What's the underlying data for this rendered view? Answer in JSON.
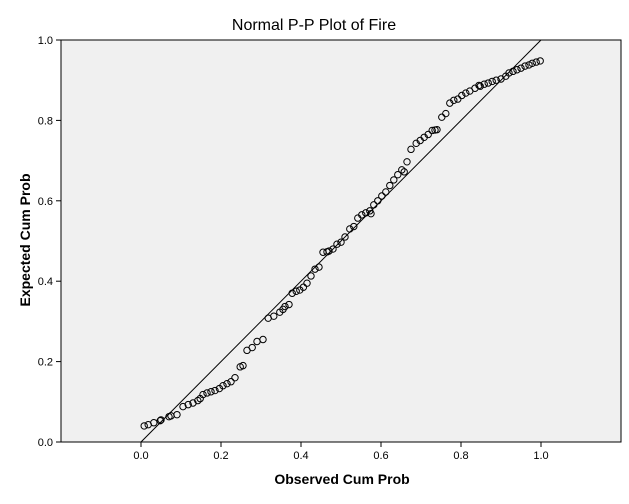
{
  "chart_data": {
    "type": "scatter",
    "title": "Normal P-P Plot of Fire",
    "xlabel": "Observed Cum Prob",
    "ylabel": "Expected Cum Prob",
    "xlim": [
      -0.2,
      1.2
    ],
    "ylim": [
      0.0,
      1.0
    ],
    "xticks": [
      "0.0",
      "0.2",
      "0.4",
      "0.6",
      "0.8",
      "1.0"
    ],
    "yticks": [
      "0.0",
      "0.2",
      "0.4",
      "0.6",
      "0.8",
      "1.0"
    ],
    "grid": false,
    "colors": {
      "plot_bg": "#f0f0f0",
      "marker_edge": "#000000",
      "line": "#000000"
    },
    "reference_line": {
      "x": [
        0.0,
        1.0
      ],
      "y": [
        0.0,
        1.0
      ]
    },
    "points": [
      [
        0.008,
        0.04
      ],
      [
        0.018,
        0.043
      ],
      [
        0.032,
        0.048
      ],
      [
        0.05,
        0.055
      ],
      [
        0.07,
        0.063
      ],
      [
        0.09,
        0.068
      ],
      [
        0.105,
        0.088
      ],
      [
        0.118,
        0.093
      ],
      [
        0.13,
        0.097
      ],
      [
        0.142,
        0.103
      ],
      [
        0.155,
        0.118
      ],
      [
        0.165,
        0.122
      ],
      [
        0.175,
        0.125
      ],
      [
        0.185,
        0.128
      ],
      [
        0.196,
        0.133
      ],
      [
        0.205,
        0.14
      ],
      [
        0.215,
        0.145
      ],
      [
        0.225,
        0.15
      ],
      [
        0.235,
        0.16
      ],
      [
        0.248,
        0.187
      ],
      [
        0.265,
        0.228
      ],
      [
        0.278,
        0.235
      ],
      [
        0.29,
        0.25
      ],
      [
        0.305,
        0.255
      ],
      [
        0.318,
        0.308
      ],
      [
        0.332,
        0.313
      ],
      [
        0.347,
        0.323
      ],
      [
        0.36,
        0.337
      ],
      [
        0.37,
        0.342
      ],
      [
        0.378,
        0.37
      ],
      [
        0.388,
        0.375
      ],
      [
        0.397,
        0.378
      ],
      [
        0.406,
        0.385
      ],
      [
        0.415,
        0.395
      ],
      [
        0.425,
        0.413
      ],
      [
        0.435,
        0.43
      ],
      [
        0.445,
        0.435
      ],
      [
        0.455,
        0.472
      ],
      [
        0.47,
        0.475
      ],
      [
        0.48,
        0.48
      ],
      [
        0.49,
        0.492
      ],
      [
        0.5,
        0.497
      ],
      [
        0.51,
        0.51
      ],
      [
        0.522,
        0.53
      ],
      [
        0.532,
        0.536
      ],
      [
        0.542,
        0.557
      ],
      [
        0.552,
        0.565
      ],
      [
        0.562,
        0.57
      ],
      [
        0.572,
        0.575
      ],
      [
        0.582,
        0.59
      ],
      [
        0.592,
        0.6
      ],
      [
        0.602,
        0.612
      ],
      [
        0.612,
        0.622
      ],
      [
        0.622,
        0.638
      ],
      [
        0.632,
        0.652
      ],
      [
        0.642,
        0.665
      ],
      [
        0.652,
        0.677
      ],
      [
        0.665,
        0.697
      ],
      [
        0.675,
        0.728
      ],
      [
        0.688,
        0.743
      ],
      [
        0.698,
        0.75
      ],
      [
        0.708,
        0.758
      ],
      [
        0.718,
        0.765
      ],
      [
        0.728,
        0.775
      ],
      [
        0.74,
        0.777
      ],
      [
        0.752,
        0.808
      ],
      [
        0.762,
        0.817
      ],
      [
        0.772,
        0.843
      ],
      [
        0.782,
        0.85
      ],
      [
        0.792,
        0.853
      ],
      [
        0.802,
        0.862
      ],
      [
        0.812,
        0.868
      ],
      [
        0.822,
        0.873
      ],
      [
        0.835,
        0.88
      ],
      [
        0.848,
        0.885
      ],
      [
        0.858,
        0.89
      ],
      [
        0.868,
        0.893
      ],
      [
        0.878,
        0.897
      ],
      [
        0.888,
        0.9
      ],
      [
        0.9,
        0.903
      ],
      [
        0.912,
        0.91
      ],
      [
        0.92,
        0.918
      ],
      [
        0.93,
        0.922
      ],
      [
        0.94,
        0.926
      ],
      [
        0.95,
        0.93
      ],
      [
        0.96,
        0.935
      ],
      [
        0.97,
        0.938
      ],
      [
        0.978,
        0.942
      ],
      [
        0.988,
        0.945
      ],
      [
        0.998,
        0.948
      ],
      [
        0.048,
        0.053
      ],
      [
        0.075,
        0.065
      ],
      [
        0.148,
        0.108
      ],
      [
        0.255,
        0.19
      ],
      [
        0.355,
        0.33
      ],
      [
        0.465,
        0.473
      ],
      [
        0.575,
        0.568
      ],
      [
        0.658,
        0.672
      ],
      [
        0.735,
        0.776
      ],
      [
        0.845,
        0.887
      ]
    ]
  }
}
